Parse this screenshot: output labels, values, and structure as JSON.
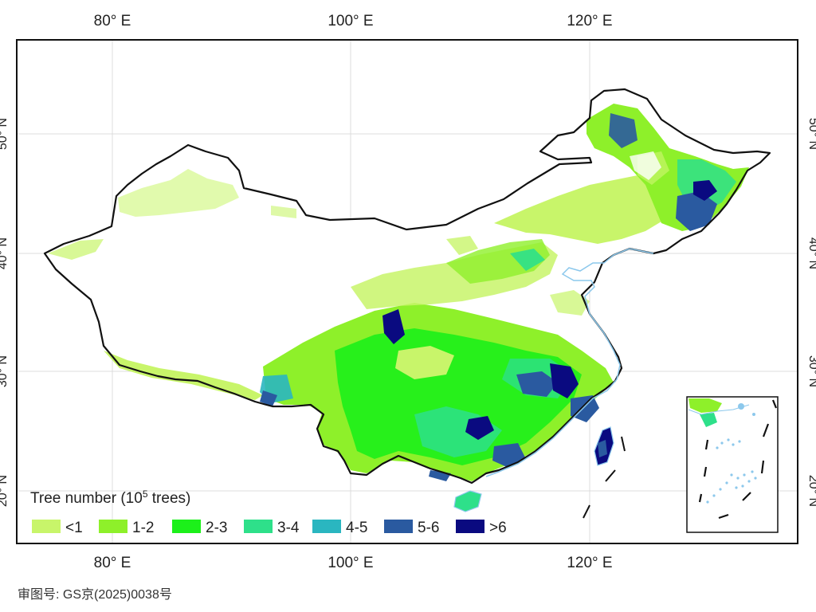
{
  "axes": {
    "lon_labels": [
      "80° E",
      "100° E",
      "120° E"
    ],
    "lat_labels": [
      "50° N",
      "40° N",
      "30° N",
      "20° N"
    ]
  },
  "legend": {
    "title_prefix": "Tree number (10",
    "title_sup": "5",
    "title_suffix": " trees)",
    "classes": [
      {
        "label": "<1",
        "color": "#c8f56a"
      },
      {
        "label": "1-2",
        "color": "#8ef02a"
      },
      {
        "label": "2-3",
        "color": "#1cf01a"
      },
      {
        "label": "3-4",
        "color": "#2ee08a"
      },
      {
        "label": "4-5",
        "color": "#2ab6c0"
      },
      {
        "label": "5-6",
        "color": "#2a5aa0"
      },
      {
        "label": ">6",
        "color": "#0a0a80"
      }
    ]
  },
  "colors": {
    "boundary": "#111111",
    "water": "#8cc8ec",
    "graticule": "#d9d9d9"
  },
  "approval_number": "审图号: GS京(2025)0038号"
}
